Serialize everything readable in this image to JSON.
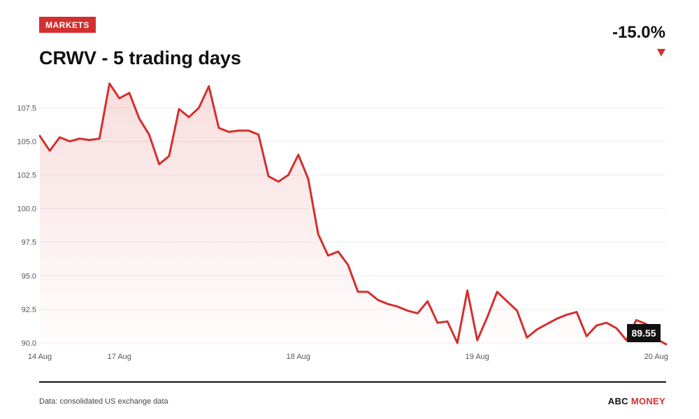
{
  "header": {
    "badge": "MARKETS",
    "title": "CRWV - 5 trading days",
    "change": "-15.0%"
  },
  "footer": {
    "source": "Data: consolidated US exchange data",
    "brand_part1": "ABC",
    "brand_part2": "MONEY"
  },
  "colors": {
    "accent": "#d32f2f",
    "line": "#d32f2f",
    "text": "#111111",
    "grid": "#eeeeee"
  },
  "chart_data": {
    "type": "area",
    "title": "CRWV - 5 trading days",
    "xlabel": "",
    "ylabel": "",
    "ylim": [
      89.9,
      109.8
    ],
    "yticks": [
      90.0,
      92.5,
      95.0,
      97.5,
      100.0,
      102.5,
      105.0,
      107.5
    ],
    "ytick_labels": [
      "90.0",
      "92.5",
      "95.0",
      "97.5",
      "100.0",
      "102.5",
      "105.0",
      "107.5"
    ],
    "xticks": [
      {
        "label": "14 Aug",
        "index": 0
      },
      {
        "label": "17 Aug",
        "index": 8
      },
      {
        "label": "18 Aug",
        "index": 26
      },
      {
        "label": "19 Aug",
        "index": 44
      },
      {
        "label": "20 Aug",
        "index": 62
      }
    ],
    "grid": true,
    "series": [
      {
        "values": [
          105.4,
          104.3,
          105.3,
          105.0,
          105.2,
          105.1,
          105.2,
          109.3,
          108.2,
          108.6,
          106.7,
          105.5,
          103.3,
          103.9,
          107.4,
          106.8,
          107.5,
          109.1,
          106.0,
          105.7,
          105.8,
          105.8,
          105.5,
          102.4,
          102.0,
          102.5,
          104.0,
          102.2,
          98.1,
          96.5,
          96.8,
          95.8,
          93.8,
          93.8,
          93.2,
          92.9,
          92.7,
          92.4,
          92.2,
          93.1,
          91.5,
          91.6,
          90.0,
          93.9,
          90.2,
          91.9,
          93.8,
          93.1,
          92.4,
          90.4,
          91.0,
          91.4,
          91.8,
          92.1,
          92.3,
          90.5,
          91.3,
          91.5,
          91.1,
          90.2,
          91.7,
          91.4,
          90.3,
          89.9
        ]
      }
    ],
    "last_value_label": "89.55"
  }
}
